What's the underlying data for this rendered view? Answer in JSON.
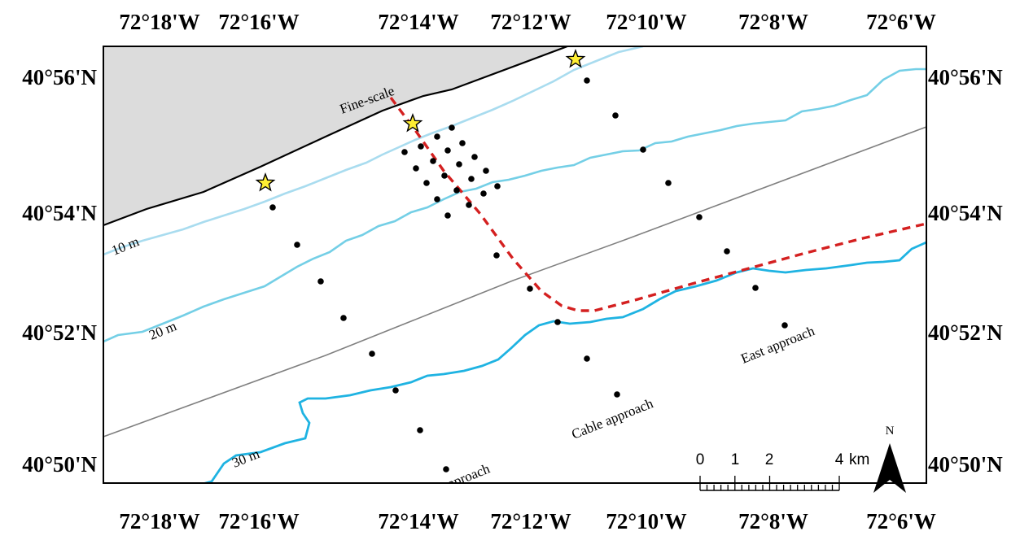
{
  "map": {
    "top_lon_labels": [
      "72°18'W",
      "72°16'W",
      "72°14'W",
      "72°12'W",
      "72°10'W",
      "72°8'W",
      "72°6'W"
    ],
    "bottom_lon_labels": [
      "72°18'W",
      "72°16'W",
      "72°14'W",
      "72°12'W",
      "72°10'W",
      "72°8'W",
      "72°6'W"
    ],
    "left_lat_labels": [
      "40°56'N",
      "40°54'N",
      "40°52'N",
      "40°50'N"
    ],
    "right_lat_labels": [
      "40°56'N",
      "40°54'N",
      "40°52'N",
      "40°50'N"
    ],
    "contour_labels": {
      "c10": "10 m",
      "c20": "20 m",
      "c30": "30 m"
    },
    "area_labels": {
      "fine_scale": "Fine-scale",
      "west_approach": "West approach",
      "cable_approach": "Cable approach",
      "east_approach": "East approach"
    },
    "scale_bar": {
      "labels": [
        "0",
        "1",
        "2",
        "4"
      ],
      "unit": "km"
    },
    "north_label": "N",
    "colors": {
      "land": "#dcdcdc",
      "shoreline": "#000000",
      "contour_10m": "#a9dcef",
      "contour_20m": "#74cfe6",
      "contour_30m": "#1fb3e2",
      "grey_line": "#808080",
      "cable_route": "#d42020",
      "star_fill": "#ffee33",
      "station": "#000000"
    },
    "symbols": {
      "star": "star-icon",
      "station": "station-dot-icon",
      "north_arrow": "north-arrow-icon"
    }
  }
}
